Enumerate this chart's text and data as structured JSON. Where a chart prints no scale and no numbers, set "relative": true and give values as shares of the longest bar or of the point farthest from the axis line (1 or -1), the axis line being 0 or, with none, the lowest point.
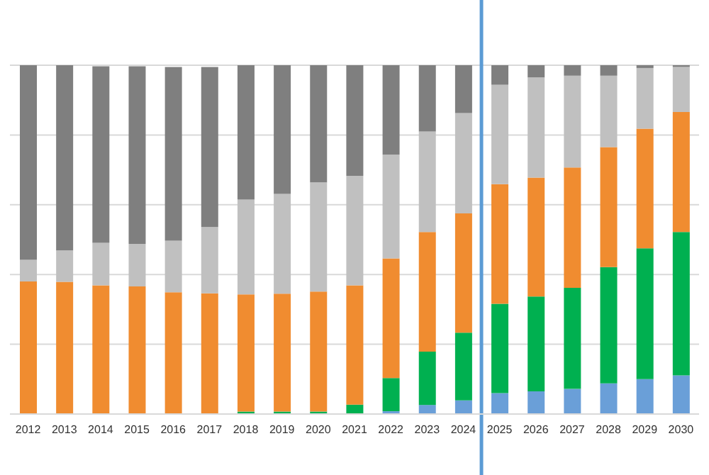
{
  "chart_data": {
    "type": "bar",
    "stacked": true,
    "relative": true,
    "grid": "y",
    "categories": [
      "2012",
      "2013",
      "2014",
      "2015",
      "2016",
      "2017",
      "2018",
      "2019",
      "2020",
      "2021",
      "2022",
      "2023",
      "2024",
      "2025",
      "2026",
      "2027",
      "2028",
      "2029",
      "2030"
    ],
    "series": [
      {
        "color": "#6a9fd8",
        "values": [
          0,
          0,
          0,
          0,
          0,
          0,
          0,
          0,
          0,
          0,
          0.008,
          0.026,
          0.039,
          0.06,
          0.065,
          0.072,
          0.088,
          0.1,
          0.111
        ]
      },
      {
        "color": "#00b050",
        "values": [
          0,
          0,
          null,
          null,
          null,
          null,
          0.007,
          0.007,
          0.007,
          0.027,
          0.095,
          0.153,
          0.194,
          0.256,
          0.272,
          0.29,
          0.333,
          0.375,
          0.411
        ]
      },
      {
        "color": "#f08c30",
        "values": [
          0.38,
          0.379,
          0.369,
          0.366,
          0.349,
          0.346,
          0.336,
          0.338,
          0.344,
          0.342,
          0.343,
          0.343,
          0.342,
          0.343,
          0.341,
          0.345,
          0.344,
          0.343,
          0.344
        ]
      },
      {
        "color": "#c0c0c0",
        "values": [
          0.062,
          0.09,
          0.122,
          0.122,
          0.148,
          0.19,
          0.272,
          0.286,
          0.313,
          0.314,
          0.298,
          0.288,
          0.288,
          0.285,
          0.287,
          0.263,
          0.205,
          0.174,
          0.129
        ]
      },
      {
        "color": "#7f7f7f",
        "values": [
          0.558,
          0.531,
          0.506,
          0.509,
          0.498,
          0.459,
          0.385,
          0.369,
          0.336,
          0.317,
          0.256,
          0.19,
          0.137,
          0.056,
          0.035,
          0.03,
          0.03,
          0.008,
          0.005
        ]
      }
    ],
    "ref_lines": [
      {
        "axis": "x",
        "value": "2025",
        "color": "#5b9bd5"
      }
    ]
  }
}
